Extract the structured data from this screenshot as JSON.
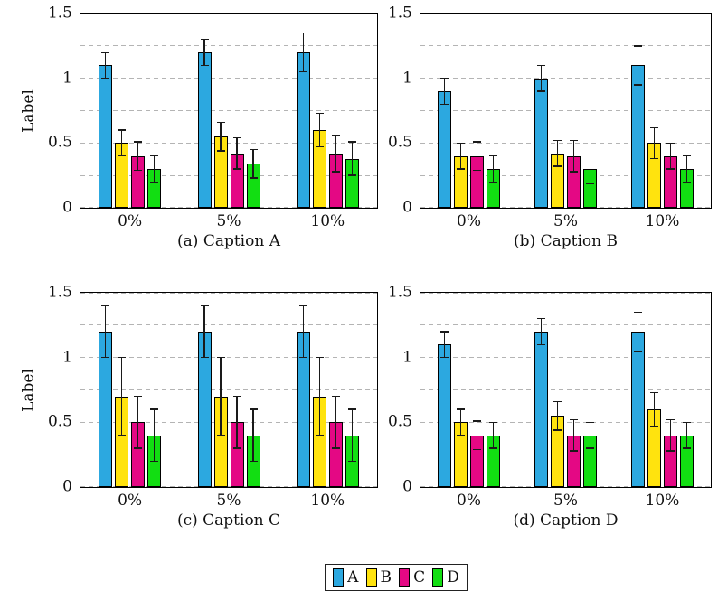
{
  "figure": {
    "background": "#ffffff",
    "frame_color": "#000000",
    "grid_color": "#b4b4b4",
    "errorbar_color": "#1a1a1a"
  },
  "legend": {
    "position": "bottom-center",
    "entries": [
      {
        "label": "A",
        "color": "#2CA8E0"
      },
      {
        "label": "B",
        "color": "#FFE30E"
      },
      {
        "label": "C",
        "color": "#E40884"
      },
      {
        "label": "D",
        "color": "#12DE12"
      }
    ]
  },
  "chart_data": [
    {
      "type": "bar",
      "caption": "(a) Caption A",
      "ylabel": "Label",
      "categories": [
        "0%",
        "5%",
        "10%"
      ],
      "ylim": [
        0,
        1.5
      ],
      "yticks": [
        {
          "value": 0,
          "label": "0"
        },
        {
          "value": 0.5,
          "label": "0.5"
        },
        {
          "value": 1,
          "label": "1"
        },
        {
          "value": 1.5,
          "label": "1.5"
        }
      ],
      "gridlines": [
        0,
        0.25,
        0.5,
        0.75,
        1,
        1.25,
        1.5
      ],
      "grid": true,
      "series": [
        {
          "name": "A",
          "color": "#2CA8E0",
          "values": [
            1.1,
            1.2,
            1.2
          ],
          "errors": [
            0.1,
            0.1,
            0.15
          ]
        },
        {
          "name": "B",
          "color": "#FFE30E",
          "values": [
            0.5,
            0.55,
            0.6
          ],
          "errors": [
            0.1,
            0.11,
            0.13
          ]
        },
        {
          "name": "C",
          "color": "#E40884",
          "values": [
            0.4,
            0.42,
            0.42
          ],
          "errors": [
            0.11,
            0.12,
            0.14
          ]
        },
        {
          "name": "D",
          "color": "#12DE12",
          "values": [
            0.3,
            0.34,
            0.38
          ],
          "errors": [
            0.1,
            0.11,
            0.13
          ]
        }
      ]
    },
    {
      "type": "bar",
      "caption": "(b) Caption B",
      "categories": [
        "0%",
        "5%",
        "10%"
      ],
      "ylim": [
        0,
        1.5
      ],
      "yticks": [
        {
          "value": 0,
          "label": "0"
        },
        {
          "value": 0.5,
          "label": "0.5"
        },
        {
          "value": 1,
          "label": "1"
        },
        {
          "value": 1.5,
          "label": "1.5"
        }
      ],
      "gridlines": [
        0,
        0.25,
        0.5,
        0.75,
        1,
        1.25,
        1.5
      ],
      "grid": true,
      "series": [
        {
          "name": "A",
          "color": "#2CA8E0",
          "values": [
            0.9,
            1.0,
            1.1
          ],
          "errors": [
            0.1,
            0.1,
            0.15
          ]
        },
        {
          "name": "B",
          "color": "#FFE30E",
          "values": [
            0.4,
            0.42,
            0.5
          ],
          "errors": [
            0.1,
            0.1,
            0.12
          ]
        },
        {
          "name": "C",
          "color": "#E40884",
          "values": [
            0.4,
            0.4,
            0.4
          ],
          "errors": [
            0.11,
            0.12,
            0.1
          ]
        },
        {
          "name": "D",
          "color": "#12DE12",
          "values": [
            0.3,
            0.3,
            0.3
          ],
          "errors": [
            0.1,
            0.11,
            0.1
          ]
        }
      ]
    },
    {
      "type": "bar",
      "caption": "(c) Caption C",
      "ylabel": "Label",
      "categories": [
        "0%",
        "5%",
        "10%"
      ],
      "ylim": [
        0,
        1.5
      ],
      "yticks": [
        {
          "value": 0,
          "label": "0"
        },
        {
          "value": 0.5,
          "label": "0.5"
        },
        {
          "value": 1,
          "label": "1"
        },
        {
          "value": 1.5,
          "label": "1.5"
        }
      ],
      "gridlines": [
        0,
        0.25,
        0.5,
        0.75,
        1,
        1.25,
        1.5
      ],
      "grid": true,
      "series": [
        {
          "name": "A",
          "color": "#2CA8E0",
          "values": [
            1.2,
            1.2,
            1.2
          ],
          "errors": [
            0.2,
            0.2,
            0.2
          ]
        },
        {
          "name": "B",
          "color": "#FFE30E",
          "values": [
            0.7,
            0.7,
            0.7
          ],
          "errors": [
            0.3,
            0.3,
            0.3
          ]
        },
        {
          "name": "C",
          "color": "#E40884",
          "values": [
            0.5,
            0.5,
            0.5
          ],
          "errors": [
            0.2,
            0.2,
            0.2
          ]
        },
        {
          "name": "D",
          "color": "#12DE12",
          "values": [
            0.4,
            0.4,
            0.4
          ],
          "errors": [
            0.2,
            0.2,
            0.2
          ]
        }
      ]
    },
    {
      "type": "bar",
      "caption": "(d) Caption D",
      "categories": [
        "0%",
        "5%",
        "10%"
      ],
      "ylim": [
        0,
        1.5
      ],
      "yticks": [
        {
          "value": 0,
          "label": "0"
        },
        {
          "value": 0.5,
          "label": "0.5"
        },
        {
          "value": 1,
          "label": "1"
        },
        {
          "value": 1.5,
          "label": "1.5"
        }
      ],
      "gridlines": [
        0,
        0.25,
        0.5,
        0.75,
        1,
        1.25,
        1.5
      ],
      "grid": true,
      "series": [
        {
          "name": "A",
          "color": "#2CA8E0",
          "values": [
            1.1,
            1.2,
            1.2
          ],
          "errors": [
            0.1,
            0.1,
            0.15
          ]
        },
        {
          "name": "B",
          "color": "#FFE30E",
          "values": [
            0.5,
            0.55,
            0.6
          ],
          "errors": [
            0.1,
            0.11,
            0.13
          ]
        },
        {
          "name": "C",
          "color": "#E40884",
          "values": [
            0.4,
            0.4,
            0.4
          ],
          "errors": [
            0.11,
            0.12,
            0.12
          ]
        },
        {
          "name": "D",
          "color": "#12DE12",
          "values": [
            0.4,
            0.4,
            0.4
          ],
          "errors": [
            0.1,
            0.1,
            0.1
          ]
        }
      ]
    }
  ]
}
